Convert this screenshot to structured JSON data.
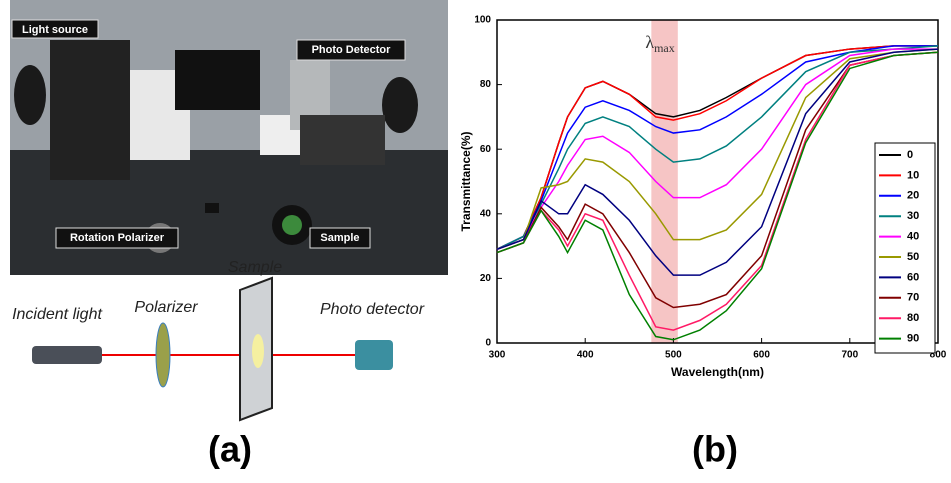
{
  "photo": {
    "labels": [
      "Light source",
      "Photo Detector",
      "Rotation Polarizer",
      "Sample"
    ]
  },
  "diagram": {
    "labels": [
      "Incident light",
      "Polarizer",
      "Sample",
      "Photo detector"
    ]
  },
  "panel_labels": [
    "(a)",
    "(b)"
  ],
  "chart_data": {
    "type": "line",
    "x_label": "Wavelength(nm)",
    "y_label": "Transmittance(%)",
    "annotation": {
      "symbol": "λ",
      "subscript": "max",
      "band": [
        475,
        505
      ],
      "color": "#f4b6b6"
    },
    "x": [
      300,
      330,
      350,
      370,
      380,
      400,
      420,
      450,
      480,
      500,
      530,
      560,
      600,
      650,
      700,
      750,
      800
    ],
    "series": [
      {
        "name": "0",
        "color": "#000000",
        "values": [
          29,
          33,
          45,
          62,
          70,
          79,
          81,
          77,
          71,
          70,
          72,
          76,
          82,
          89,
          91,
          92,
          92
        ]
      },
      {
        "name": "10",
        "color": "#ff0000",
        "values": [
          29,
          33,
          45,
          62,
          70,
          79,
          81,
          77,
          70,
          69,
          71,
          75,
          82,
          89,
          91,
          92,
          92
        ]
      },
      {
        "name": "20",
        "color": "#0000ff",
        "values": [
          29,
          33,
          44,
          58,
          65,
          73,
          75,
          72,
          67,
          65,
          66,
          70,
          77,
          87,
          90,
          92,
          92
        ]
      },
      {
        "name": "30",
        "color": "#008080",
        "values": [
          29,
          33,
          43,
          54,
          60,
          68,
          70,
          67,
          60,
          56,
          57,
          61,
          70,
          84,
          90,
          91,
          92
        ]
      },
      {
        "name": "40",
        "color": "#ff00ff",
        "values": [
          29,
          32,
          42,
          50,
          55,
          63,
          64,
          59,
          50,
          45,
          45,
          49,
          60,
          80,
          89,
          91,
          91
        ]
      },
      {
        "name": "50",
        "color": "#999900",
        "values": [
          29,
          32,
          48,
          49,
          50,
          57,
          56,
          50,
          40,
          32,
          32,
          35,
          46,
          76,
          88,
          90,
          91
        ]
      },
      {
        "name": "60",
        "color": "#000080",
        "values": [
          29,
          32,
          44,
          40,
          40,
          49,
          46,
          38,
          27,
          21,
          21,
          25,
          36,
          71,
          87,
          90,
          91
        ]
      },
      {
        "name": "70",
        "color": "#800000",
        "values": [
          28,
          31,
          42,
          36,
          32,
          43,
          40,
          28,
          14,
          11,
          12,
          15,
          27,
          66,
          86,
          89,
          90
        ]
      },
      {
        "name": "80",
        "color": "#ff1a66",
        "values": [
          28,
          31,
          41,
          35,
          30,
          40,
          38,
          21,
          5,
          4,
          7,
          12,
          24,
          63,
          86,
          89,
          90
        ]
      },
      {
        "name": "90",
        "color": "#008000",
        "values": [
          28,
          31,
          41,
          33,
          28,
          38,
          35,
          15,
          2,
          1,
          4,
          10,
          23,
          62,
          85,
          89,
          90
        ]
      }
    ],
    "xlim": [
      300,
      800
    ],
    "ylim": [
      0,
      100
    ],
    "xticks": [
      300,
      400,
      500,
      600,
      700,
      800
    ],
    "yticks": [
      0,
      20,
      40,
      60,
      80,
      100
    ]
  }
}
